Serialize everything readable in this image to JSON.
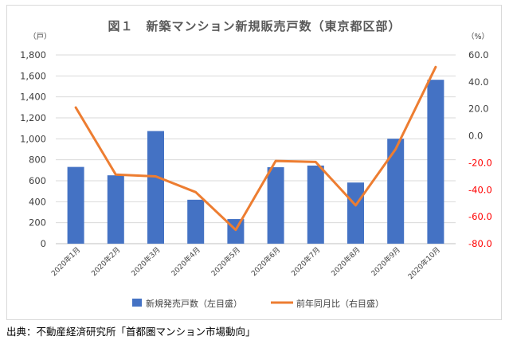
{
  "chart_data": {
    "type": "bar",
    "title": "図１　新築マンション新規販売戸数（東京都区部）",
    "categories": [
      "2020年1月",
      "2020年2月",
      "2020年3月",
      "2020年4月",
      "2020年5月",
      "2020年6月",
      "2020年7月",
      "2020年8月",
      "2020年9月",
      "2020年10月"
    ],
    "series": [
      {
        "name": "新規発売戸数（左目盛）",
        "type": "bar",
        "axis": "left",
        "color": "#4472c4",
        "values": [
          732,
          652,
          1074,
          419,
          235,
          729,
          745,
          583,
          1001,
          1563
        ]
      },
      {
        "name": "前年同月比（右目盛）",
        "type": "line",
        "axis": "right",
        "color": "#ed7d31",
        "values": [
          21.0,
          -28.7,
          -30.1,
          -41.8,
          -69.8,
          -18.6,
          -19.4,
          -51.6,
          -9.8,
          51.0
        ]
      }
    ],
    "left_axis": {
      "unit": "（戸）",
      "ylim": [
        0,
        1800
      ],
      "ticks": [
        "0",
        "200",
        "400",
        "600",
        "800",
        "1,000",
        "1,200",
        "1,400",
        "1,600",
        "1,800"
      ]
    },
    "right_axis": {
      "unit": "（%）",
      "ylim": [
        -80,
        60
      ],
      "ticks": [
        "-80.0",
        "-60.0",
        "-40.0",
        "-20.0",
        "0.0",
        "20.0",
        "40.0",
        "60.0"
      ]
    },
    "grid": true,
    "legend_position": "bottom"
  },
  "footer": {
    "source": "出典：不動産経済研究所「首都圏マンション市場動向」"
  }
}
